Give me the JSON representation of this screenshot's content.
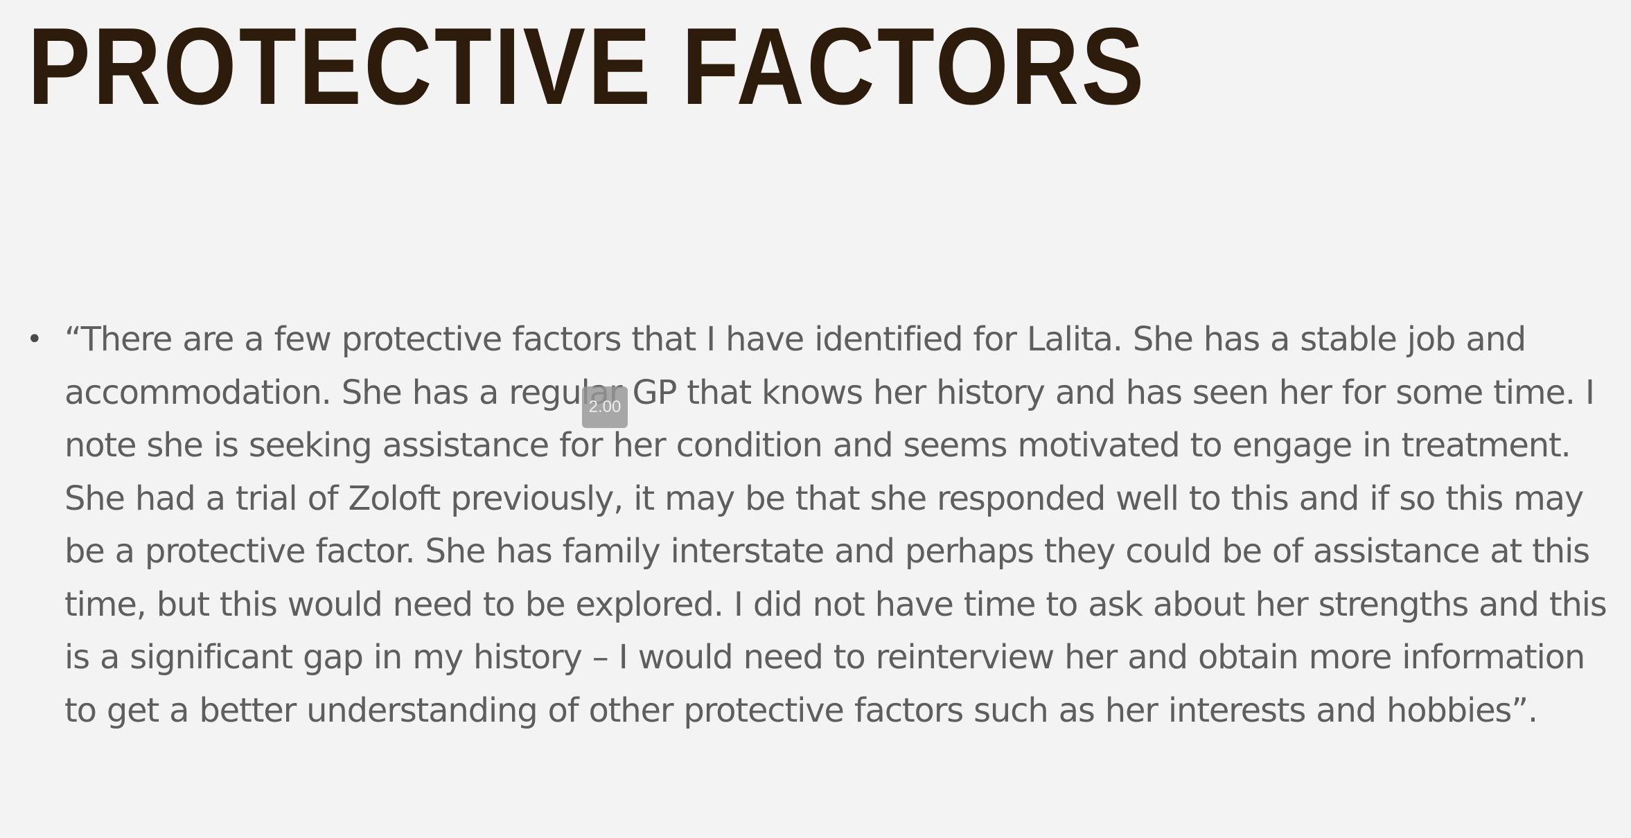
{
  "slide": {
    "title": "PROTECTIVE FACTORS",
    "bullet_glyph": "•",
    "bullets": [
      "“There are a few protective factors that I have identified for Lalita.  She has a stable job and accommodation.  She has a regular GP that knows her history and has seen her for some time.  I note she is seeking assistance for her condition and seems motivated to engage in treatment.  She had a trial of Zoloft previously, it may be that she responded well to this and if so this may be a protective factor.  She has family interstate and perhaps they could be of assistance at this time, but this would need to be explored.  I did not have time to ask about her strengths and this is a significant gap in my history – I would need to reinterview her and obtain more information to get a better understanding of other protective factors such as her interests and hobbies”."
    ]
  },
  "overlay": {
    "timer_value": "2.00"
  },
  "colors": {
    "background": "#f4f3f3",
    "title": "#2d1b0b",
    "body_text": "#5f5e5e"
  }
}
